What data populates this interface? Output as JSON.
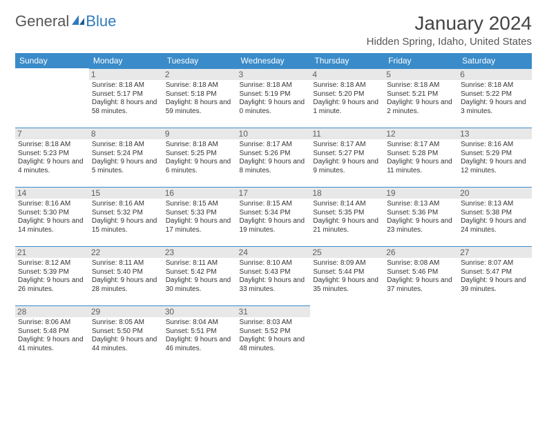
{
  "brand": {
    "part1": "General",
    "part2": "Blue"
  },
  "title": "January 2024",
  "location": "Hidden Spring, Idaho, United States",
  "colors": {
    "header_bg": "#3a8bc9",
    "header_text": "#ffffff",
    "daynum_bg": "#e8e8e8",
    "text": "#333333",
    "brand_blue": "#2f7bbf"
  },
  "layout": {
    "cols": 7,
    "rows": 6,
    "start_offset": 1
  },
  "weekdays": [
    "Sunday",
    "Monday",
    "Tuesday",
    "Wednesday",
    "Thursday",
    "Friday",
    "Saturday"
  ],
  "days": [
    {
      "n": 1,
      "sunrise": "8:18 AM",
      "sunset": "5:17 PM",
      "daylight": "8 hours and 58 minutes."
    },
    {
      "n": 2,
      "sunrise": "8:18 AM",
      "sunset": "5:18 PM",
      "daylight": "8 hours and 59 minutes."
    },
    {
      "n": 3,
      "sunrise": "8:18 AM",
      "sunset": "5:19 PM",
      "daylight": "9 hours and 0 minutes."
    },
    {
      "n": 4,
      "sunrise": "8:18 AM",
      "sunset": "5:20 PM",
      "daylight": "9 hours and 1 minute."
    },
    {
      "n": 5,
      "sunrise": "8:18 AM",
      "sunset": "5:21 PM",
      "daylight": "9 hours and 2 minutes."
    },
    {
      "n": 6,
      "sunrise": "8:18 AM",
      "sunset": "5:22 PM",
      "daylight": "9 hours and 3 minutes."
    },
    {
      "n": 7,
      "sunrise": "8:18 AM",
      "sunset": "5:23 PM",
      "daylight": "9 hours and 4 minutes."
    },
    {
      "n": 8,
      "sunrise": "8:18 AM",
      "sunset": "5:24 PM",
      "daylight": "9 hours and 5 minutes."
    },
    {
      "n": 9,
      "sunrise": "8:18 AM",
      "sunset": "5:25 PM",
      "daylight": "9 hours and 6 minutes."
    },
    {
      "n": 10,
      "sunrise": "8:17 AM",
      "sunset": "5:26 PM",
      "daylight": "9 hours and 8 minutes."
    },
    {
      "n": 11,
      "sunrise": "8:17 AM",
      "sunset": "5:27 PM",
      "daylight": "9 hours and 9 minutes."
    },
    {
      "n": 12,
      "sunrise": "8:17 AM",
      "sunset": "5:28 PM",
      "daylight": "9 hours and 11 minutes."
    },
    {
      "n": 13,
      "sunrise": "8:16 AM",
      "sunset": "5:29 PM",
      "daylight": "9 hours and 12 minutes."
    },
    {
      "n": 14,
      "sunrise": "8:16 AM",
      "sunset": "5:30 PM",
      "daylight": "9 hours and 14 minutes."
    },
    {
      "n": 15,
      "sunrise": "8:16 AM",
      "sunset": "5:32 PM",
      "daylight": "9 hours and 15 minutes."
    },
    {
      "n": 16,
      "sunrise": "8:15 AM",
      "sunset": "5:33 PM",
      "daylight": "9 hours and 17 minutes."
    },
    {
      "n": 17,
      "sunrise": "8:15 AM",
      "sunset": "5:34 PM",
      "daylight": "9 hours and 19 minutes."
    },
    {
      "n": 18,
      "sunrise": "8:14 AM",
      "sunset": "5:35 PM",
      "daylight": "9 hours and 21 minutes."
    },
    {
      "n": 19,
      "sunrise": "8:13 AM",
      "sunset": "5:36 PM",
      "daylight": "9 hours and 23 minutes."
    },
    {
      "n": 20,
      "sunrise": "8:13 AM",
      "sunset": "5:38 PM",
      "daylight": "9 hours and 24 minutes."
    },
    {
      "n": 21,
      "sunrise": "8:12 AM",
      "sunset": "5:39 PM",
      "daylight": "9 hours and 26 minutes."
    },
    {
      "n": 22,
      "sunrise": "8:11 AM",
      "sunset": "5:40 PM",
      "daylight": "9 hours and 28 minutes."
    },
    {
      "n": 23,
      "sunrise": "8:11 AM",
      "sunset": "5:42 PM",
      "daylight": "9 hours and 30 minutes."
    },
    {
      "n": 24,
      "sunrise": "8:10 AM",
      "sunset": "5:43 PM",
      "daylight": "9 hours and 33 minutes."
    },
    {
      "n": 25,
      "sunrise": "8:09 AM",
      "sunset": "5:44 PM",
      "daylight": "9 hours and 35 minutes."
    },
    {
      "n": 26,
      "sunrise": "8:08 AM",
      "sunset": "5:46 PM",
      "daylight": "9 hours and 37 minutes."
    },
    {
      "n": 27,
      "sunrise": "8:07 AM",
      "sunset": "5:47 PM",
      "daylight": "9 hours and 39 minutes."
    },
    {
      "n": 28,
      "sunrise": "8:06 AM",
      "sunset": "5:48 PM",
      "daylight": "9 hours and 41 minutes."
    },
    {
      "n": 29,
      "sunrise": "8:05 AM",
      "sunset": "5:50 PM",
      "daylight": "9 hours and 44 minutes."
    },
    {
      "n": 30,
      "sunrise": "8:04 AM",
      "sunset": "5:51 PM",
      "daylight": "9 hours and 46 minutes."
    },
    {
      "n": 31,
      "sunrise": "8:03 AM",
      "sunset": "5:52 PM",
      "daylight": "9 hours and 48 minutes."
    }
  ],
  "labels": {
    "sunrise": "Sunrise:",
    "sunset": "Sunset:",
    "daylight": "Daylight:"
  }
}
